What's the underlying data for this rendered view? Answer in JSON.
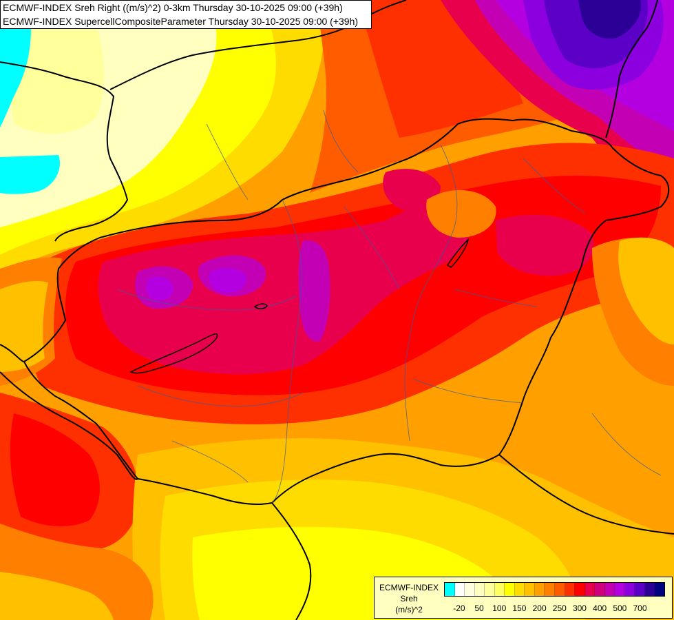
{
  "titles": {
    "line1": "ECMWF-INDEX Sreh Right ((m/s)^2) 0-3km Thursday 30-10-2025 09:00 (+39h)",
    "line2": "ECMWF-INDEX SupercellCompositeParameter Thursday 30-10-2025 09:00 (+39h)"
  },
  "legend": {
    "model": "ECMWF-INDEX",
    "parameter": "Sreh",
    "unit": "(m/s)^2",
    "colors": [
      "#00ffff",
      "#ffffff",
      "#ffffe0",
      "#ffffc0",
      "#ffff9c",
      "#ffff60",
      "#ffff00",
      "#ffdc00",
      "#ffc000",
      "#ffa000",
      "#ff8000",
      "#ff5c00",
      "#ff3000",
      "#ff0000",
      "#e8004c",
      "#d0007c",
      "#c400b4",
      "#b400e0",
      "#8c00e0",
      "#5c00c8",
      "#2c0096",
      "#000080"
    ],
    "ticks": [
      "-20",
      "50",
      "100",
      "150",
      "200",
      "250",
      "300",
      "400",
      "500",
      "700"
    ]
  },
  "map": {
    "colors": {
      "cyan": "#00ffff",
      "cream": "#ffffc0",
      "pale_yellow": "#ffff9c",
      "yellow": "#ffff00",
      "gold": "#ffdc00",
      "amber": "#ffc000",
      "orange": "#ffa000",
      "dark_orange": "#ff8000",
      "red_orange": "#ff5c00",
      "red": "#ff3000",
      "crimson": "#ff0000",
      "rose": "#e8004c",
      "magenta": "#c400b4",
      "purple": "#b400e0",
      "violet": "#8c00e0",
      "indigo": "#5c00c8",
      "navy": "#2c0096"
    }
  }
}
